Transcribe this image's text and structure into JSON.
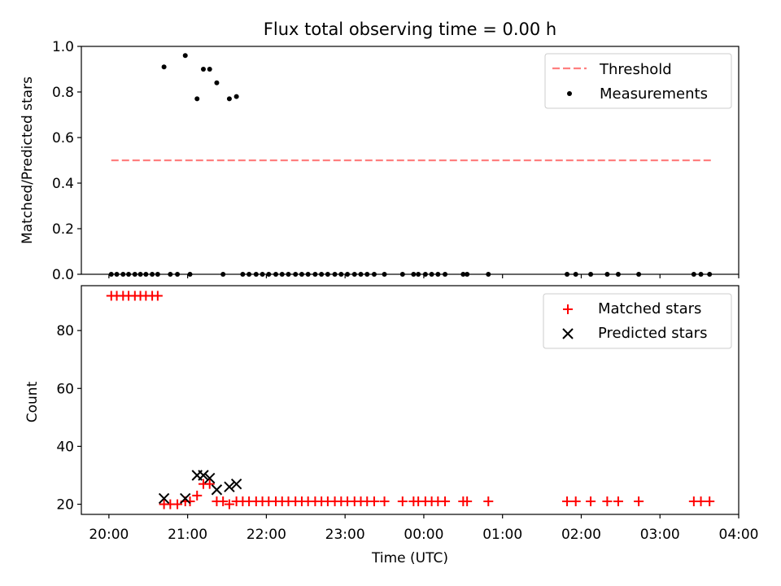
{
  "chart_data": [
    {
      "type": "scatter",
      "title": "Flux total observing time = 0.00 h",
      "xlabel": "",
      "ylabel": "Matched/Predicted stars",
      "xlim": [
        19.65,
        28.0
      ],
      "ylim": [
        0,
        1.0
      ],
      "yticks": [
        0.0,
        0.2,
        0.4,
        0.6,
        0.8,
        1.0
      ],
      "ytick_labels": [
        "0.0",
        "0.2",
        "0.4",
        "0.6",
        "0.8",
        "1.0"
      ],
      "legend_position": "top-right",
      "series": [
        {
          "name": "Threshold",
          "kind": "dashed-line",
          "color": "#ff7f7f",
          "x": [
            20.03,
            27.66
          ],
          "y": [
            0.5,
            0.5
          ]
        },
        {
          "name": "Measurements",
          "kind": "dot",
          "color": "#000000",
          "x": [
            20.03,
            20.1,
            20.18,
            20.25,
            20.33,
            20.4,
            20.47,
            20.55,
            20.62,
            20.7,
            20.78,
            20.87,
            20.97,
            21.03,
            21.12,
            21.2,
            21.28,
            21.37,
            21.45,
            21.53,
            21.62,
            21.7,
            21.78,
            21.87,
            21.95,
            22.03,
            22.12,
            22.2,
            22.28,
            22.37,
            22.45,
            22.53,
            22.62,
            22.7,
            22.78,
            22.87,
            22.95,
            23.03,
            23.12,
            23.2,
            23.28,
            23.37,
            23.5,
            23.73,
            23.87,
            23.93,
            24.02,
            24.1,
            24.18,
            24.27,
            24.5,
            24.55,
            24.82,
            25.82,
            25.93,
            26.12,
            26.33,
            26.47,
            26.73,
            27.43,
            27.52,
            27.63
          ],
          "y": [
            0,
            0,
            0,
            0,
            0,
            0,
            0,
            0,
            0,
            0.91,
            0,
            0,
            0.96,
            0,
            0.77,
            0.9,
            0.9,
            0.84,
            0,
            0.77,
            0.78,
            0,
            0,
            0,
            0,
            0,
            0,
            0,
            0,
            0,
            0,
            0,
            0,
            0,
            0,
            0,
            0,
            0,
            0,
            0,
            0,
            0,
            0,
            0,
            0,
            0,
            0,
            0,
            0,
            0,
            0,
            0,
            0,
            0,
            0,
            0,
            0,
            0,
            0,
            0,
            0,
            0
          ]
        }
      ]
    },
    {
      "type": "scatter",
      "title": "",
      "xlabel": "Time (UTC)",
      "ylabel": "Count",
      "xlim": [
        19.65,
        28.0
      ],
      "ylim": [
        16.5,
        95.5
      ],
      "yticks": [
        20,
        40,
        60,
        80
      ],
      "ytick_labels": [
        "20",
        "40",
        "60",
        "80"
      ],
      "xticks": [
        20,
        21,
        22,
        23,
        24,
        25,
        26,
        27,
        28
      ],
      "xtick_labels": [
        "20:00",
        "21:00",
        "22:00",
        "23:00",
        "00:00",
        "01:00",
        "02:00",
        "03:00",
        "04:00"
      ],
      "legend_position": "top-right",
      "series": [
        {
          "name": "Matched stars",
          "kind": "plus",
          "color": "#ff0000",
          "x": [
            20.03,
            20.1,
            20.18,
            20.25,
            20.33,
            20.4,
            20.47,
            20.55,
            20.62,
            20.7,
            20.78,
            20.87,
            20.97,
            21.03,
            21.12,
            21.2,
            21.28,
            21.37,
            21.45,
            21.53,
            21.62,
            21.7,
            21.78,
            21.87,
            21.95,
            22.03,
            22.12,
            22.2,
            22.28,
            22.37,
            22.45,
            22.53,
            22.62,
            22.7,
            22.78,
            22.87,
            22.95,
            23.03,
            23.12,
            23.2,
            23.28,
            23.37,
            23.5,
            23.73,
            23.87,
            23.93,
            24.02,
            24.1,
            24.18,
            24.27,
            24.5,
            24.55,
            24.82,
            25.82,
            25.93,
            26.12,
            26.33,
            26.47,
            26.73,
            27.43,
            27.52,
            27.63
          ],
          "y": [
            92,
            92,
            92,
            92,
            92,
            92,
            92,
            92,
            92,
            20,
            20,
            20,
            21,
            21,
            23,
            27,
            27,
            21,
            21,
            20,
            21,
            21,
            21,
            21,
            21,
            21,
            21,
            21,
            21,
            21,
            21,
            21,
            21,
            21,
            21,
            21,
            21,
            21,
            21,
            21,
            21,
            21,
            21,
            21,
            21,
            21,
            21,
            21,
            21,
            21,
            21,
            21,
            21,
            21,
            21,
            21,
            21,
            21,
            21,
            21,
            21,
            21
          ]
        },
        {
          "name": "Predicted stars",
          "kind": "cross",
          "color": "#000000",
          "x": [
            20.7,
            20.97,
            21.12,
            21.2,
            21.28,
            21.37,
            21.53,
            21.62
          ],
          "y": [
            22,
            22,
            30,
            30,
            29,
            25,
            26,
            27
          ]
        }
      ]
    }
  ]
}
